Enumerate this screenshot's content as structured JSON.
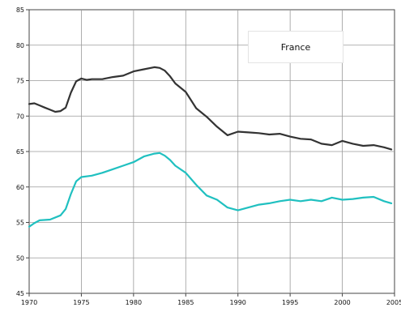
{
  "chart_data": {
    "type": "line",
    "title": "",
    "legend_text": "France",
    "legend_placement": "top-right",
    "grid": true,
    "xlim": [
      1970,
      2005
    ],
    "ylim": [
      45,
      85
    ],
    "x_ticks": [
      1970,
      1975,
      1980,
      1985,
      1990,
      1995,
      2000,
      2005
    ],
    "x_tick_labels": [
      "1970",
      "1975",
      "1980",
      "1985",
      "1990",
      "1995",
      "2000",
      "2005"
    ],
    "y_ticks": [
      45,
      50,
      55,
      60,
      65,
      70,
      75,
      80,
      85
    ],
    "y_tick_labels": [
      "45",
      "50",
      "55",
      "60",
      "65",
      "70",
      "75",
      "80",
      "85"
    ],
    "series": [
      {
        "color": "#333333",
        "x": [
          1970,
          1970.5,
          1971,
          1971.5,
          1972,
          1972.5,
          1973,
          1973.5,
          1974,
          1974.5,
          1975,
          1975.5,
          1976,
          1977,
          1978,
          1979,
          1980,
          1981,
          1982,
          1982.5,
          1983,
          1983.5,
          1984,
          1985,
          1986,
          1987,
          1988,
          1989,
          1990,
          1991,
          1992,
          1993,
          1994,
          1995,
          1996,
          1997,
          1998,
          1999,
          2000,
          2001,
          2002,
          2003,
          2004,
          2004.7
        ],
        "values": [
          71.7,
          71.8,
          71.5,
          71.2,
          70.9,
          70.6,
          70.7,
          71.2,
          73.3,
          74.9,
          75.3,
          75.1,
          75.2,
          75.2,
          75.5,
          75.7,
          76.3,
          76.6,
          76.9,
          76.8,
          76.4,
          75.6,
          74.6,
          73.4,
          71.1,
          69.9,
          68.5,
          67.3,
          67.8,
          67.7,
          67.6,
          67.4,
          67.5,
          67.1,
          66.8,
          66.7,
          66.1,
          65.9,
          66.5,
          66.1,
          65.8,
          65.9,
          65.6,
          65.3
        ]
      },
      {
        "color": "#20c0c0",
        "x": [
          1970,
          1970.5,
          1971,
          1972,
          1973,
          1973.5,
          1974,
          1974.5,
          1975,
          1976,
          1977,
          1978,
          1979,
          1980,
          1981,
          1982,
          1982.5,
          1983,
          1983.5,
          1984,
          1985,
          1986,
          1987,
          1988,
          1989,
          1990,
          1991,
          1992,
          1993,
          1994,
          1995,
          1996,
          1997,
          1998,
          1999,
          2000,
          2001,
          2002,
          2003,
          2004,
          2004.7
        ],
        "values": [
          54.4,
          54.9,
          55.3,
          55.4,
          56.0,
          56.9,
          59.0,
          60.8,
          61.4,
          61.6,
          62.0,
          62.5,
          63.0,
          63.5,
          64.3,
          64.7,
          64.8,
          64.4,
          63.8,
          63.0,
          62.0,
          60.3,
          58.8,
          58.2,
          57.1,
          56.7,
          57.1,
          57.5,
          57.7,
          58.0,
          58.2,
          58.0,
          58.2,
          58.0,
          58.5,
          58.2,
          58.3,
          58.5,
          58.6,
          58.0,
          57.7
        ]
      }
    ]
  }
}
